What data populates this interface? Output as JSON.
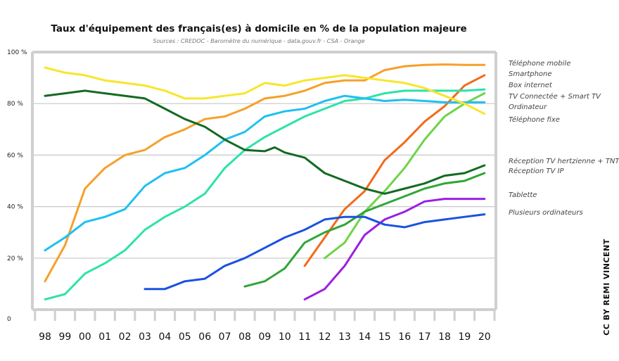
{
  "chart_data": {
    "type": "line",
    "title": "Taux d'équipement des français(es) à domicile en % de la population majeure",
    "subtitle": "Sources : CREDOC - Baromètre du numérique - data.gouv.fr - CSA - Orange",
    "credit": "CC BY REMI VINCENT",
    "x": [
      "98",
      "99",
      "00",
      "01",
      "02",
      "03",
      "04",
      "05",
      "06",
      "07",
      "08",
      "09",
      "10",
      "11",
      "12",
      "13",
      "14",
      "15",
      "16",
      "17",
      "18",
      "19",
      "20"
    ],
    "y_ticks": [
      "0",
      "20 %",
      "40 %",
      "60 %",
      "80 %",
      "100 %"
    ],
    "y_tick_values": [
      0,
      20,
      40,
      60,
      80,
      100
    ],
    "ylim": [
      0,
      100
    ],
    "grid": true,
    "series": [
      {
        "name": "Téléphone mobile",
        "color": "#f5a02a",
        "values": [
          [
            1998,
            11
          ],
          [
            1999,
            25
          ],
          [
            2000,
            47
          ],
          [
            2001,
            55
          ],
          [
            2002,
            60
          ],
          [
            2003,
            62
          ],
          [
            2004,
            67
          ],
          [
            2005,
            70
          ],
          [
            2006,
            74
          ],
          [
            2007,
            75
          ],
          [
            2008,
            78
          ],
          [
            2009,
            82
          ],
          [
            2010,
            83
          ],
          [
            2011,
            85
          ],
          [
            2012,
            88
          ],
          [
            2013,
            89
          ],
          [
            2014,
            89
          ],
          [
            2015,
            93
          ],
          [
            2016,
            94.5
          ],
          [
            2017,
            95
          ],
          [
            2018,
            95.2
          ],
          [
            2019,
            95
          ],
          [
            2020,
            95
          ]
        ]
      },
      {
        "name": "Smartphone",
        "color": "#f26a1b",
        "values": [
          [
            2011,
            17
          ],
          [
            2012,
            28
          ],
          [
            2013,
            39
          ],
          [
            2014,
            46
          ],
          [
            2015,
            58
          ],
          [
            2016,
            65
          ],
          [
            2017,
            73
          ],
          [
            2018,
            79
          ],
          [
            2019,
            87
          ],
          [
            2020,
            91
          ]
        ]
      },
      {
        "name": "Box internet",
        "color": "#6fd34a",
        "values": [
          [
            2012,
            20
          ],
          [
            2013,
            26
          ],
          [
            2014,
            38
          ],
          [
            2015,
            46
          ],
          [
            2016,
            55
          ],
          [
            2017,
            66
          ],
          [
            2018,
            75
          ],
          [
            2019,
            80
          ],
          [
            2020,
            84
          ]
        ]
      },
      {
        "name": "TV Connectée + Smart TV",
        "color": "#2de3a7",
        "values": [
          [
            1998,
            4
          ],
          [
            1999,
            6
          ],
          [
            2000,
            14
          ],
          [
            2001,
            18
          ],
          [
            2002,
            23
          ],
          [
            2003,
            31
          ],
          [
            2004,
            36
          ],
          [
            2005,
            40
          ],
          [
            2006,
            45
          ],
          [
            2007,
            55
          ],
          [
            2008,
            62
          ],
          [
            2009,
            67
          ],
          [
            2010,
            71
          ],
          [
            2011,
            75
          ],
          [
            2012,
            78
          ],
          [
            2013,
            81
          ],
          [
            2014,
            82
          ],
          [
            2015,
            84
          ],
          [
            2016,
            85
          ],
          [
            2017,
            85
          ],
          [
            2018,
            85
          ],
          [
            2019,
            85
          ],
          [
            2020,
            85.5
          ]
        ]
      },
      {
        "name": "Ordinateur",
        "color": "#1ec0f2",
        "values": [
          [
            1998,
            23
          ],
          [
            1999,
            28
          ],
          [
            2000,
            34
          ],
          [
            2001,
            36
          ],
          [
            2002,
            39
          ],
          [
            2003,
            48
          ],
          [
            2004,
            53
          ],
          [
            2005,
            55
          ],
          [
            2006,
            60
          ],
          [
            2007,
            66
          ],
          [
            2008,
            69
          ],
          [
            2009,
            75
          ],
          [
            2010,
            77
          ],
          [
            2011,
            78
          ],
          [
            2012,
            81
          ],
          [
            2013,
            83
          ],
          [
            2014,
            82
          ],
          [
            2015,
            81
          ],
          [
            2016,
            81.5
          ],
          [
            2017,
            81
          ],
          [
            2018,
            80.5
          ],
          [
            2019,
            80.5
          ],
          [
            2020,
            80.5
          ]
        ]
      },
      {
        "name": "Téléphone fixe",
        "color": "#f7e62a",
        "values": [
          [
            1998,
            94
          ],
          [
            1999,
            92
          ],
          [
            2000,
            91
          ],
          [
            2001,
            89
          ],
          [
            2002,
            88
          ],
          [
            2003,
            87
          ],
          [
            2004,
            85
          ],
          [
            2005,
            82
          ],
          [
            2006,
            82
          ],
          [
            2007,
            83
          ],
          [
            2008,
            84
          ],
          [
            2009,
            88
          ],
          [
            2010,
            87
          ],
          [
            2011,
            89
          ],
          [
            2012,
            90
          ],
          [
            2013,
            91
          ],
          [
            2014,
            90
          ],
          [
            2015,
            89
          ],
          [
            2016,
            88
          ],
          [
            2017,
            86
          ],
          [
            2018,
            83
          ],
          [
            2019,
            80
          ],
          [
            2020,
            76
          ]
        ]
      },
      {
        "name": "Réception TV hertzienne + TNT",
        "color": "#136a22",
        "values": [
          [
            1998,
            83
          ],
          [
            1999,
            84
          ],
          [
            2000,
            85
          ],
          [
            2001,
            84
          ],
          [
            2002,
            83
          ],
          [
            2003,
            82
          ],
          [
            2004,
            78
          ],
          [
            2005,
            74
          ],
          [
            2006,
            71
          ],
          [
            2007,
            66
          ],
          [
            2008,
            62
          ],
          [
            2009,
            61.5
          ],
          [
            2009.5,
            63
          ],
          [
            2010,
            61
          ],
          [
            2011,
            59
          ],
          [
            2012,
            53
          ],
          [
            2013,
            50
          ],
          [
            2014,
            47
          ],
          [
            2015,
            45
          ],
          [
            2016,
            47
          ],
          [
            2017,
            49
          ],
          [
            2018,
            52
          ],
          [
            2019,
            53
          ],
          [
            2020,
            56
          ]
        ]
      },
      {
        "name": "Réception TV IP",
        "color": "#2fa636",
        "values": [
          [
            2008,
            9
          ],
          [
            2009,
            11
          ],
          [
            2010,
            16
          ],
          [
            2011,
            26
          ],
          [
            2012,
            30
          ],
          [
            2013,
            33
          ],
          [
            2014,
            38
          ],
          [
            2015,
            41
          ],
          [
            2016,
            44
          ],
          [
            2017,
            47
          ],
          [
            2018,
            49
          ],
          [
            2019,
            50
          ],
          [
            2020,
            53
          ]
        ]
      },
      {
        "name": "Tablette",
        "color": "#9a1fe0",
        "values": [
          [
            2011,
            4
          ],
          [
            2012,
            8
          ],
          [
            2013,
            17
          ],
          [
            2014,
            29
          ],
          [
            2015,
            35
          ],
          [
            2016,
            38
          ],
          [
            2017,
            42
          ],
          [
            2018,
            43
          ],
          [
            2019,
            43
          ],
          [
            2020,
            43
          ]
        ]
      },
      {
        "name": "Plusieurs ordinateurs",
        "color": "#1a52e0",
        "values": [
          [
            2003,
            8
          ],
          [
            2004,
            8
          ],
          [
            2005,
            11
          ],
          [
            2006,
            12
          ],
          [
            2007,
            17
          ],
          [
            2008,
            20
          ],
          [
            2009,
            24
          ],
          [
            2010,
            28
          ],
          [
            2011,
            31
          ],
          [
            2012,
            35
          ],
          [
            2013,
            36
          ],
          [
            2014,
            36
          ],
          [
            2015,
            33
          ],
          [
            2016,
            32
          ],
          [
            2017,
            34
          ],
          [
            2018,
            35
          ],
          [
            2019,
            36
          ],
          [
            2020,
            37
          ]
        ]
      }
    ],
    "legend_placement": "right"
  }
}
